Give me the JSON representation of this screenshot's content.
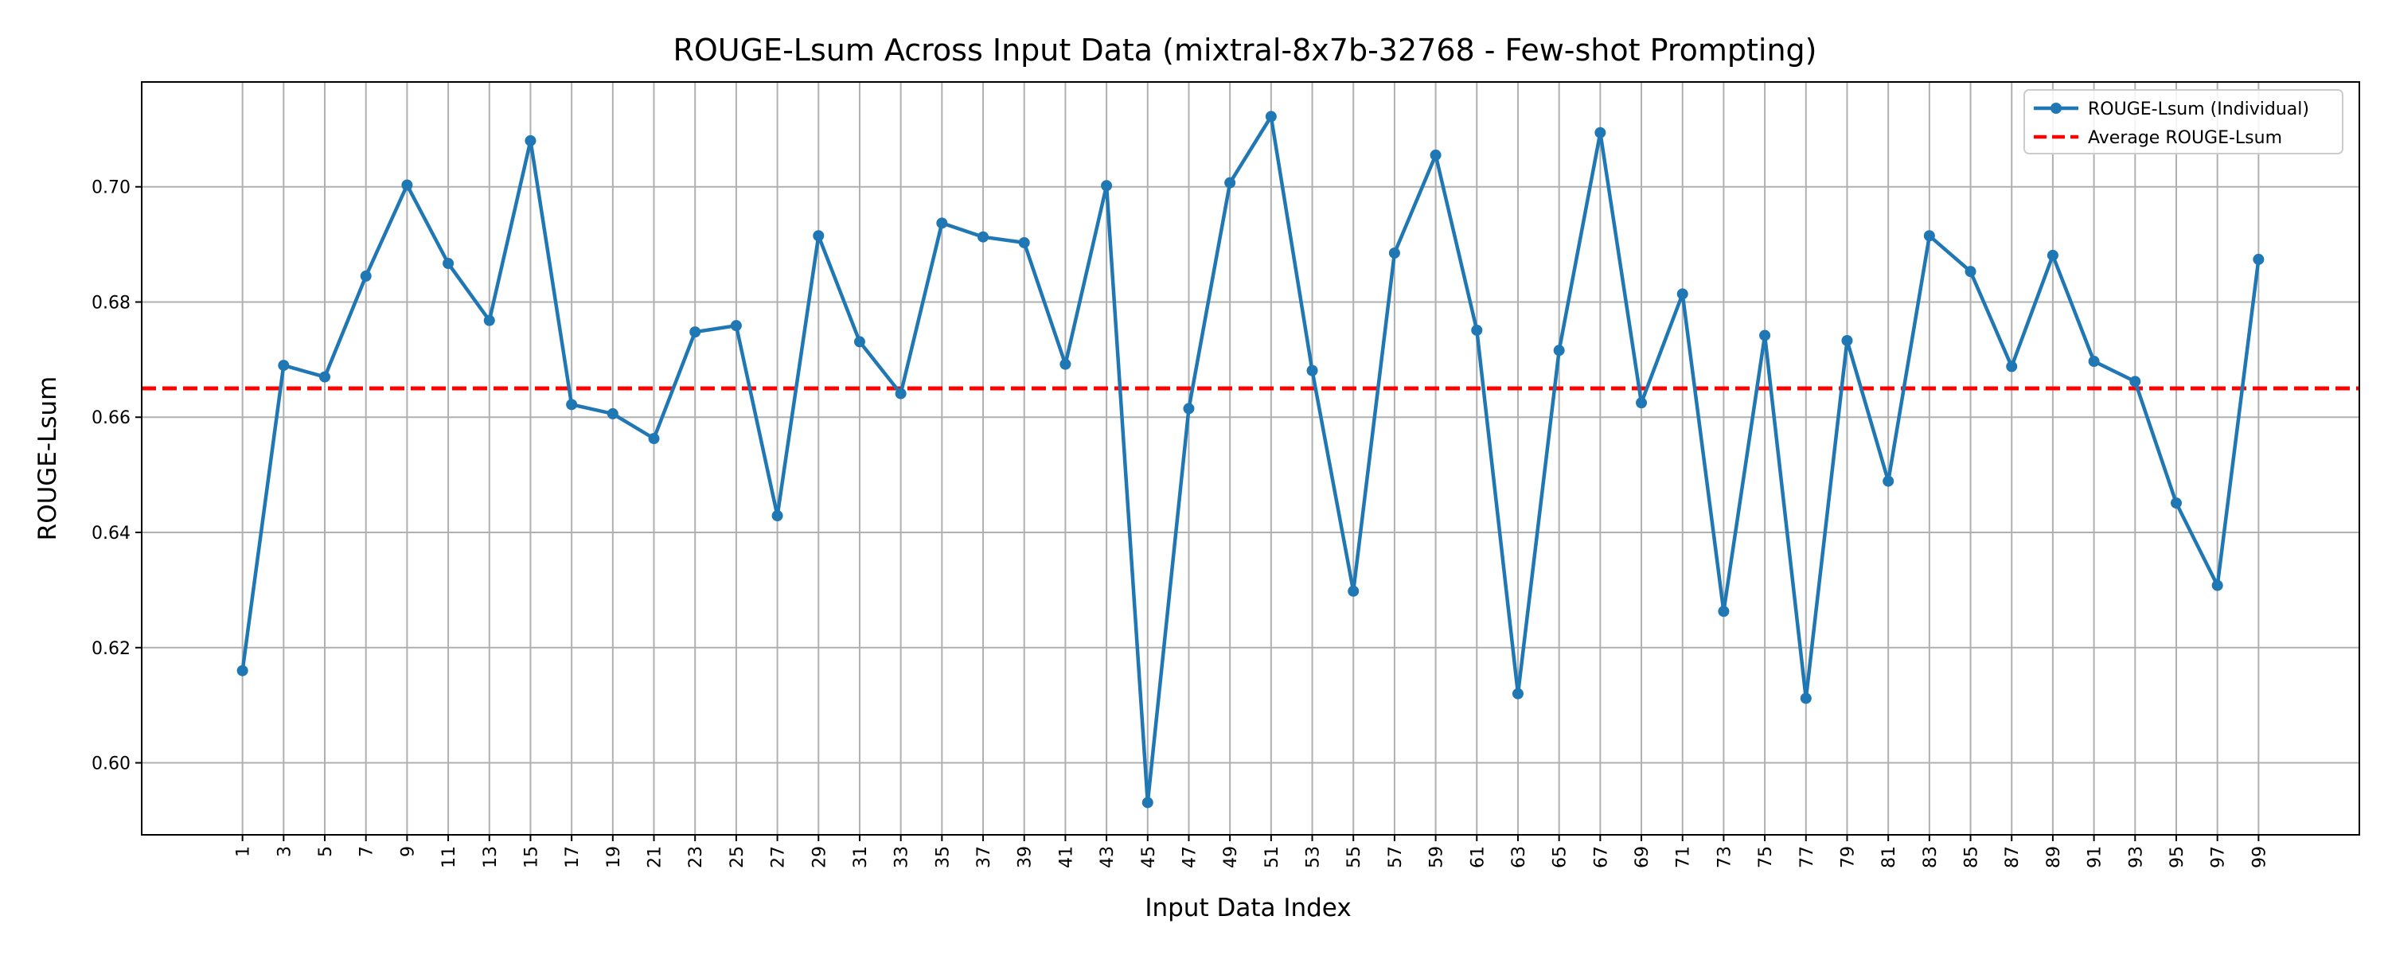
{
  "chart_data": {
    "type": "line",
    "title": "ROUGE-Lsum Across Input Data (mixtral-8x7b-32768 - Few-shot Prompting)",
    "xlabel": "Input Data Index",
    "ylabel": "ROUGE-Lsum",
    "x": [
      1,
      3,
      5,
      7,
      9,
      11,
      13,
      15,
      17,
      19,
      21,
      23,
      25,
      27,
      29,
      31,
      33,
      35,
      37,
      39,
      41,
      43,
      45,
      47,
      49,
      51,
      53,
      55,
      57,
      59,
      61,
      63,
      65,
      67,
      69,
      71,
      73,
      75,
      77,
      79,
      81,
      83,
      85,
      87,
      89,
      91,
      93,
      95,
      97,
      99
    ],
    "x_ticks": [
      "1",
      "3",
      "5",
      "7",
      "9",
      "11",
      "13",
      "15",
      "17",
      "19",
      "21",
      "23",
      "25",
      "27",
      "29",
      "31",
      "33",
      "35",
      "37",
      "39",
      "41",
      "43",
      "45",
      "47",
      "49",
      "51",
      "53",
      "55",
      "57",
      "59",
      "61",
      "63",
      "65",
      "67",
      "69",
      "71",
      "73",
      "75",
      "77",
      "79",
      "81",
      "83",
      "85",
      "87",
      "89",
      "91",
      "93",
      "95",
      "97",
      "99"
    ],
    "xlim": [
      -3.9,
      103.9
    ],
    "y_ticks": [
      "0.60",
      "0.62",
      "0.64",
      "0.66",
      "0.68",
      "0.70"
    ],
    "y_tick_values": [
      0.6,
      0.62,
      0.64,
      0.66,
      0.68,
      0.7
    ],
    "ylim": [
      0.5875,
      0.7182
    ],
    "series": [
      {
        "name": "ROUGE-Lsum (Individual)",
        "color": "#1f77b4",
        "style": "solid-with-markers",
        "values": [
          0.616,
          0.669,
          0.667,
          0.6845,
          0.7003,
          0.6867,
          0.6768,
          0.708,
          0.6622,
          0.6606,
          0.6563,
          0.6748,
          0.6759,
          0.6429,
          0.6915,
          0.6731,
          0.6641,
          0.6937,
          0.6913,
          0.6903,
          0.6692,
          0.7002,
          0.5931,
          0.6615,
          0.7007,
          0.7122,
          0.6681,
          0.6298,
          0.6885,
          0.7055,
          0.6751,
          0.612,
          0.6716,
          0.7094,
          0.6625,
          0.6814,
          0.6263,
          0.6742,
          0.6112,
          0.6733,
          0.6489,
          0.6915,
          0.6853,
          0.6688,
          0.6881,
          0.6697,
          0.6662,
          0.6451,
          0.6308,
          0.6874
        ]
      },
      {
        "name": "Average ROUGE-Lsum",
        "color": "#ff0000",
        "style": "dashed",
        "value": 0.665
      }
    ],
    "grid": true,
    "legend_position": "top-right"
  }
}
